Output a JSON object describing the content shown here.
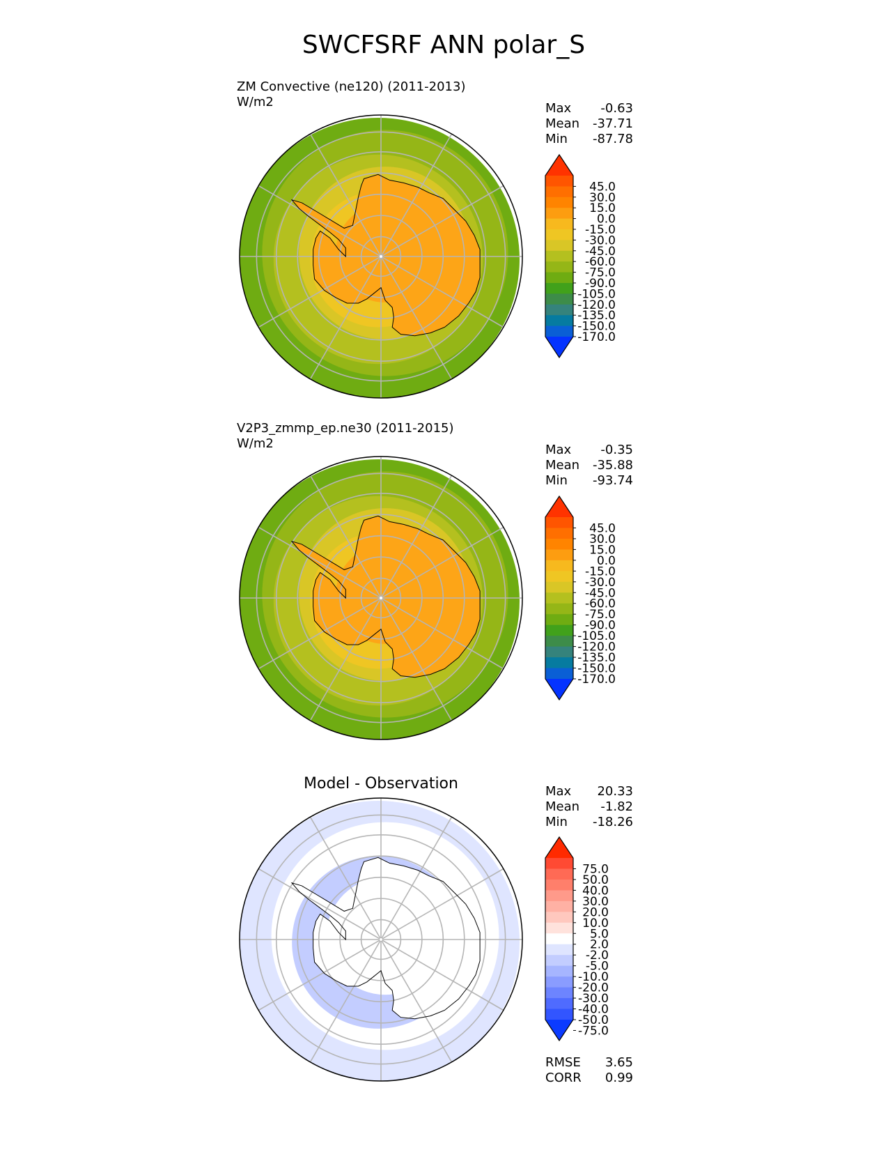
{
  "figure": {
    "title": "SWCFSRF ANN polar_S"
  },
  "chart_data": [
    {
      "type": "heatmap",
      "projection": "south-polar-stereographic",
      "title": "ZM Convective (ne120) (2011-2013)",
      "units": "W/m2",
      "stats": [
        {
          "label": "Max",
          "value": "-0.63"
        },
        {
          "label": "Mean",
          "value": "-37.71"
        },
        {
          "label": "Min",
          "value": "-87.78"
        }
      ],
      "colorbar": {
        "ticks": [
          "45.0",
          "30.0",
          "15.0",
          "0.0",
          "-15.0",
          "-30.0",
          "-45.0",
          "-60.0",
          "-75.0",
          "-90.0",
          "-105.0",
          "-120.0",
          "-135.0",
          "-150.0",
          "-170.0"
        ],
        "colors": [
          "#ff3300",
          "#ff5500",
          "#ff6f00",
          "#ff8400",
          "#fd9d10",
          "#f7b91e",
          "#efc623",
          "#d9c626",
          "#b4c01f",
          "#95b617",
          "#6fac12",
          "#41a11b",
          "#3d8c49",
          "#35837c",
          "#067ba0",
          "#0a5fd5",
          "#0433ff"
        ]
      },
      "field_bands": [
        {
          "value": -90,
          "color": "#6fac12"
        },
        {
          "value": -75,
          "color": "#95b617"
        },
        {
          "value": -60,
          "color": "#b4c01f"
        },
        {
          "value": -45,
          "color": "#d9c626"
        },
        {
          "value": -30,
          "color": "#efc623"
        },
        {
          "value": -20,
          "color": "#fda517"
        }
      ]
    },
    {
      "type": "heatmap",
      "projection": "south-polar-stereographic",
      "title": "V2P3_zmmp_ep.ne30 (2011-2015)",
      "units": "W/m2",
      "stats": [
        {
          "label": "Max",
          "value": "-0.35"
        },
        {
          "label": "Mean",
          "value": "-35.88"
        },
        {
          "label": "Min",
          "value": "-93.74"
        }
      ],
      "colorbar": {
        "ticks": [
          "45.0",
          "30.0",
          "15.0",
          "0.0",
          "-15.0",
          "-30.0",
          "-45.0",
          "-60.0",
          "-75.0",
          "-90.0",
          "-105.0",
          "-120.0",
          "-135.0",
          "-150.0",
          "-170.0"
        ],
        "colors": [
          "#ff3300",
          "#ff5500",
          "#ff6f00",
          "#ff8400",
          "#fd9d10",
          "#f7b91e",
          "#efc623",
          "#d9c626",
          "#b4c01f",
          "#95b617",
          "#6fac12",
          "#41a11b",
          "#3d8c49",
          "#35837c",
          "#067ba0",
          "#0a5fd5",
          "#0433ff"
        ]
      },
      "field_bands": [
        {
          "value": -90,
          "color": "#6fac12"
        },
        {
          "value": -75,
          "color": "#95b617"
        },
        {
          "value": -60,
          "color": "#b4c01f"
        },
        {
          "value": -45,
          "color": "#d9c626"
        },
        {
          "value": -30,
          "color": "#efc623"
        },
        {
          "value": -20,
          "color": "#fda517"
        }
      ]
    },
    {
      "type": "heatmap",
      "projection": "south-polar-stereographic",
      "title": "Model - Observation",
      "units": "",
      "stats": [
        {
          "label": "Max",
          "value": "20.33"
        },
        {
          "label": "Mean",
          "value": "-1.82"
        },
        {
          "label": "Min",
          "value": "-18.26"
        }
      ],
      "colorbar": {
        "ticks": [
          "75.0",
          "50.0",
          "40.0",
          "30.0",
          "20.0",
          "10.0",
          "5.0",
          "2.0",
          "-2.0",
          "-5.0",
          "-10.0",
          "-20.0",
          "-30.0",
          "-40.0",
          "-50.0",
          "-75.0"
        ],
        "colors": [
          "#ff2a00",
          "#ff4a33",
          "#ff6a55",
          "#ff7f6b",
          "#ff9a8a",
          "#ffb1a4",
          "#ffc8be",
          "#ffe2dc",
          "#ffffff",
          "#dfe5ff",
          "#c3cdff",
          "#a6b5ff",
          "#8a9cff",
          "#6d84ff",
          "#4f6bff",
          "#3255ff",
          "#0b3bff"
        ]
      },
      "field_bands": [
        {
          "value": -5,
          "color": "#dfe5ff"
        },
        {
          "value": 0,
          "color": "#ffffff"
        },
        {
          "value": -7,
          "color": "#c3cdff"
        },
        {
          "value": 0,
          "color": "#ffffff"
        }
      ],
      "error_stats": [
        {
          "label": "RMSE",
          "value": "3.65"
        },
        {
          "label": "CORR",
          "value": "0.99"
        }
      ]
    }
  ]
}
